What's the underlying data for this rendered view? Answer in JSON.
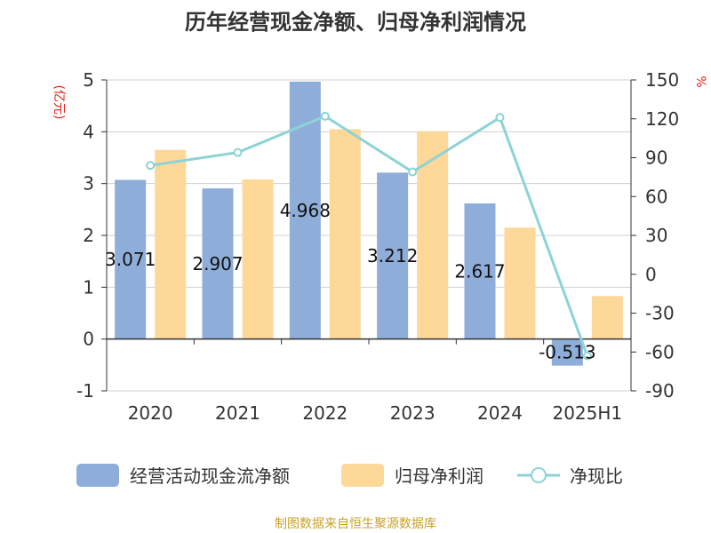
{
  "chart_data": {
    "type": "bar",
    "title": "历年经营现金净额、归母净利润情况",
    "categories": [
      "2020",
      "2021",
      "2022",
      "2023",
      "2024",
      "2025H1"
    ],
    "series": [
      {
        "name": "经营活动现金流净额",
        "kind": "bar",
        "axis": "left",
        "color": "#8eadd9",
        "values": [
          3.071,
          2.907,
          4.968,
          3.212,
          2.617,
          -0.513
        ]
      },
      {
        "name": "归母净利润",
        "kind": "bar",
        "axis": "left",
        "color": "#fdd899",
        "values": [
          3.65,
          3.08,
          4.05,
          4.01,
          2.15,
          0.83
        ]
      },
      {
        "name": "净现比",
        "kind": "line",
        "axis": "right",
        "color": "#8dd3d6",
        "values": [
          84,
          94,
          122,
          79,
          121,
          -63
        ]
      }
    ],
    "data_labels": [
      "3.071",
      "2.907",
      "4.968",
      "3.212",
      "2.617",
      "-0.513"
    ],
    "left_axis": {
      "unit_label": "(亿元)",
      "ylim": [
        -1,
        5
      ],
      "ticks": [
        "5",
        "4",
        "3",
        "2",
        "1",
        "0",
        "-1"
      ]
    },
    "right_axis": {
      "unit_label": "%",
      "ylim": [
        -90,
        150
      ],
      "ticks": [
        "150",
        "120",
        "90",
        "60",
        "30",
        "0",
        "-30",
        "-60",
        "-90"
      ]
    },
    "grid": true,
    "legend_position": "bottom",
    "source": "制图数据来自恒生聚源数据库"
  }
}
